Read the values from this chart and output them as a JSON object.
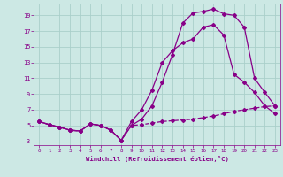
{
  "xlabel": "Windchill (Refroidissement éolien,°C)",
  "background_color": "#cce8e4",
  "grid_color": "#aacfca",
  "line_color": "#880088",
  "x_ticks": [
    0,
    1,
    2,
    3,
    4,
    5,
    6,
    7,
    8,
    9,
    10,
    11,
    12,
    13,
    14,
    15,
    16,
    17,
    18,
    19,
    20,
    21,
    22,
    23
  ],
  "y_ticks": [
    3,
    5,
    7,
    9,
    11,
    13,
    15,
    17,
    19
  ],
  "xlim": [
    -0.5,
    23.5
  ],
  "ylim": [
    2.5,
    20.5
  ],
  "series1_x": [
    0,
    1,
    2,
    3,
    4,
    5,
    6,
    7,
    8,
    9,
    10,
    11,
    12,
    13,
    14,
    15,
    16,
    17,
    18,
    19,
    20,
    21,
    22,
    23
  ],
  "series1_y": [
    5.5,
    5.1,
    4.8,
    4.4,
    4.3,
    5.2,
    5.0,
    4.4,
    3.1,
    5.0,
    5.1,
    5.3,
    5.5,
    5.6,
    5.7,
    5.8,
    6.0,
    6.2,
    6.5,
    6.8,
    7.0,
    7.2,
    7.4,
    7.5
  ],
  "series2_x": [
    0,
    1,
    2,
    3,
    4,
    5,
    6,
    7,
    8,
    9,
    10,
    11,
    12,
    13,
    14,
    15,
    16,
    17,
    18,
    19,
    20,
    21,
    22,
    23
  ],
  "series2_y": [
    5.5,
    5.1,
    4.8,
    4.4,
    4.3,
    5.2,
    5.0,
    4.4,
    3.1,
    5.0,
    5.8,
    7.5,
    10.5,
    14.0,
    18.0,
    19.3,
    19.5,
    19.8,
    19.2,
    19.0,
    17.5,
    11.0,
    9.2,
    7.5
  ],
  "series3_x": [
    0,
    1,
    2,
    3,
    4,
    5,
    6,
    7,
    8,
    9,
    10,
    11,
    12,
    13,
    14,
    15,
    16,
    17,
    18,
    19,
    20,
    21,
    22,
    23
  ],
  "series3_y": [
    5.5,
    5.1,
    4.8,
    4.4,
    4.3,
    5.2,
    5.0,
    4.4,
    3.1,
    5.5,
    7.0,
    9.5,
    13.0,
    14.5,
    15.5,
    16.0,
    17.5,
    17.8,
    16.5,
    11.5,
    10.5,
    9.2,
    7.5,
    6.5
  ]
}
